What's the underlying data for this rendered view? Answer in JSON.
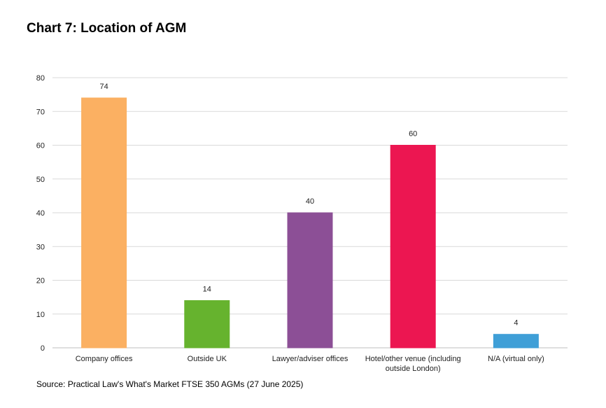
{
  "title": "Chart 7: Location of AGM",
  "source": "Source: Practical Law's What's Market FTSE 350 AGMs (27 June 2025)",
  "chart_data": {
    "type": "bar",
    "categories": [
      [
        "Company offices"
      ],
      [
        "Outside UK"
      ],
      [
        "Lawyer/adviser offices"
      ],
      [
        "Hotel/other venue (including",
        "outside London)"
      ],
      [
        "N/A (virtual only)"
      ]
    ],
    "values": [
      74,
      14,
      40,
      60,
      4
    ],
    "colors": [
      "#fbb062",
      "#66b32e",
      "#8c4f96",
      "#ec1651",
      "#3f9fd7"
    ],
    "ylim": [
      0,
      80
    ],
    "yticks": [
      0,
      10,
      20,
      30,
      40,
      50,
      60,
      70,
      80
    ],
    "grid": true,
    "legend": "none",
    "gridline_color": "#d9d9d9",
    "axis_color": "#bfbfbf"
  }
}
